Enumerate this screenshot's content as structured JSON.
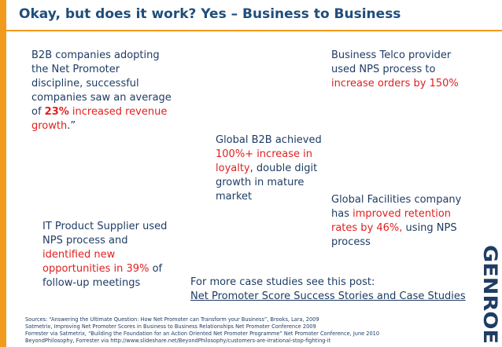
{
  "title": "Okay, but does it work? Yes – Business to Business",
  "b2b": {
    "lead": "B2B companies adopting the Net Promoter discipline, successful companies saw an average of",
    "highlight_bold": "23%",
    "highlight": " increased revenue growth",
    "tail": ".”"
  },
  "telco": {
    "lead": "Business Telco provider used NPS process to ",
    "highlight": "increase orders by 150%"
  },
  "global_b2b": {
    "lead": "Global B2B  achieved ",
    "highlight": "100%+ increase in loyalty",
    "tail": ", double digit growth in mature market"
  },
  "facilities": {
    "lead": "Global Facilities company has ",
    "highlight": "improved retention rates by 46%,",
    "tail": " using NPS process"
  },
  "it_supplier": {
    "lead": "IT Product Supplier used NPS process and ",
    "highlight": "identified new opportunities in 39%",
    "tail": " of follow-up meetings"
  },
  "more": {
    "intro": "For more case studies see this post:",
    "link": "Net Promoter Score Success Stories and Case Studies"
  },
  "sources": [
    "Sources: “Answering the Ultimate Question: How Net Promoter can Transform your Business”, Brooks, Lara, 2009",
    "Satmetrix, Improving Net Promoter Scores in Business to Business Relationships Net Promoter Conference 2009",
    "Forrester via Satmetrix, “Building the Foundation for an Action Oriented Net Promoter Programme” Net Promoter Conference, June 2010",
    "BeyondPhilosophy, Forrester  via http://www.slideshare.net/BeyondPhilosophy/customers-are-irrational-stop-fighting-it"
  ],
  "logo": "GENROE",
  "colors": {
    "accent": "#f29a1d",
    "title": "#1f4e79",
    "text": "#1f3c64",
    "highlight": "#e02020"
  }
}
